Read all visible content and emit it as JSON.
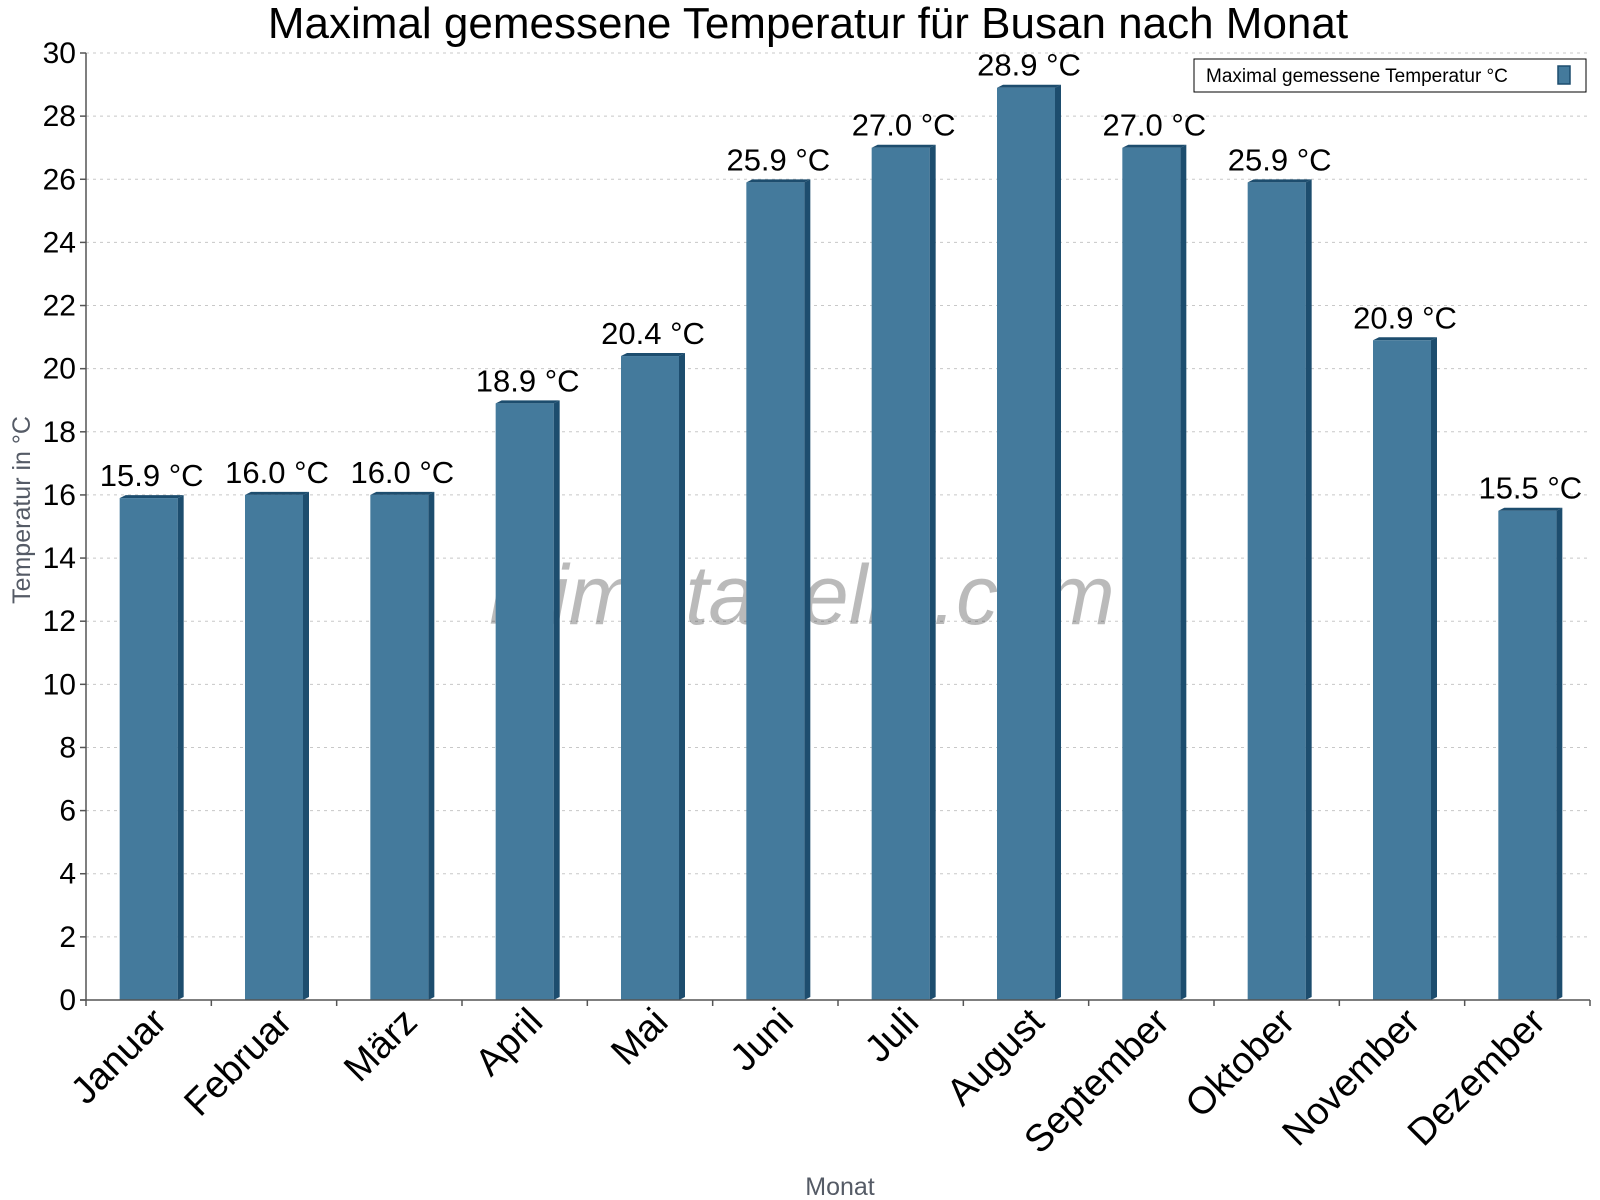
{
  "chart_data": {
    "type": "bar",
    "title": "Maximal gemessene Temperatur für Busan nach Monat",
    "xlabel": "Monat",
    "ylabel": "Temperatur in °C",
    "ylim": [
      0,
      30
    ],
    "yticks": [
      "0",
      "2",
      "4",
      "6",
      "8",
      "10",
      "12",
      "14",
      "16",
      "18",
      "20",
      "22",
      "24",
      "26",
      "28",
      "30"
    ],
    "grid": true,
    "legend_position": "top-right",
    "categories": [
      "Januar",
      "Februar",
      "März",
      "April",
      "Mai",
      "Juni",
      "Juli",
      "August",
      "September",
      "Oktober",
      "November",
      "Dezember"
    ],
    "series": [
      {
        "name": "Maximal gemessene Temperatur °C",
        "values": [
          15.9,
          16.0,
          16.0,
          18.9,
          20.4,
          25.9,
          27.0,
          28.9,
          27.0,
          25.9,
          20.9,
          15.5
        ],
        "labels": [
          "15.9 °C",
          "16.0 °C",
          "16.0 °C",
          "18.9 °C",
          "20.4 °C",
          "25.9 °C",
          "27.0 °C",
          "28.9 °C",
          "27.0 °C",
          "25.9 °C",
          "20.9 °C",
          "15.5 °C"
        ]
      }
    ],
    "colors": {
      "bar": "#447a9c",
      "bar_shade": "#1d4d6e",
      "grid": "#c8c8c8",
      "axis": "#555555"
    },
    "watermark": "klimatabelle.com"
  }
}
